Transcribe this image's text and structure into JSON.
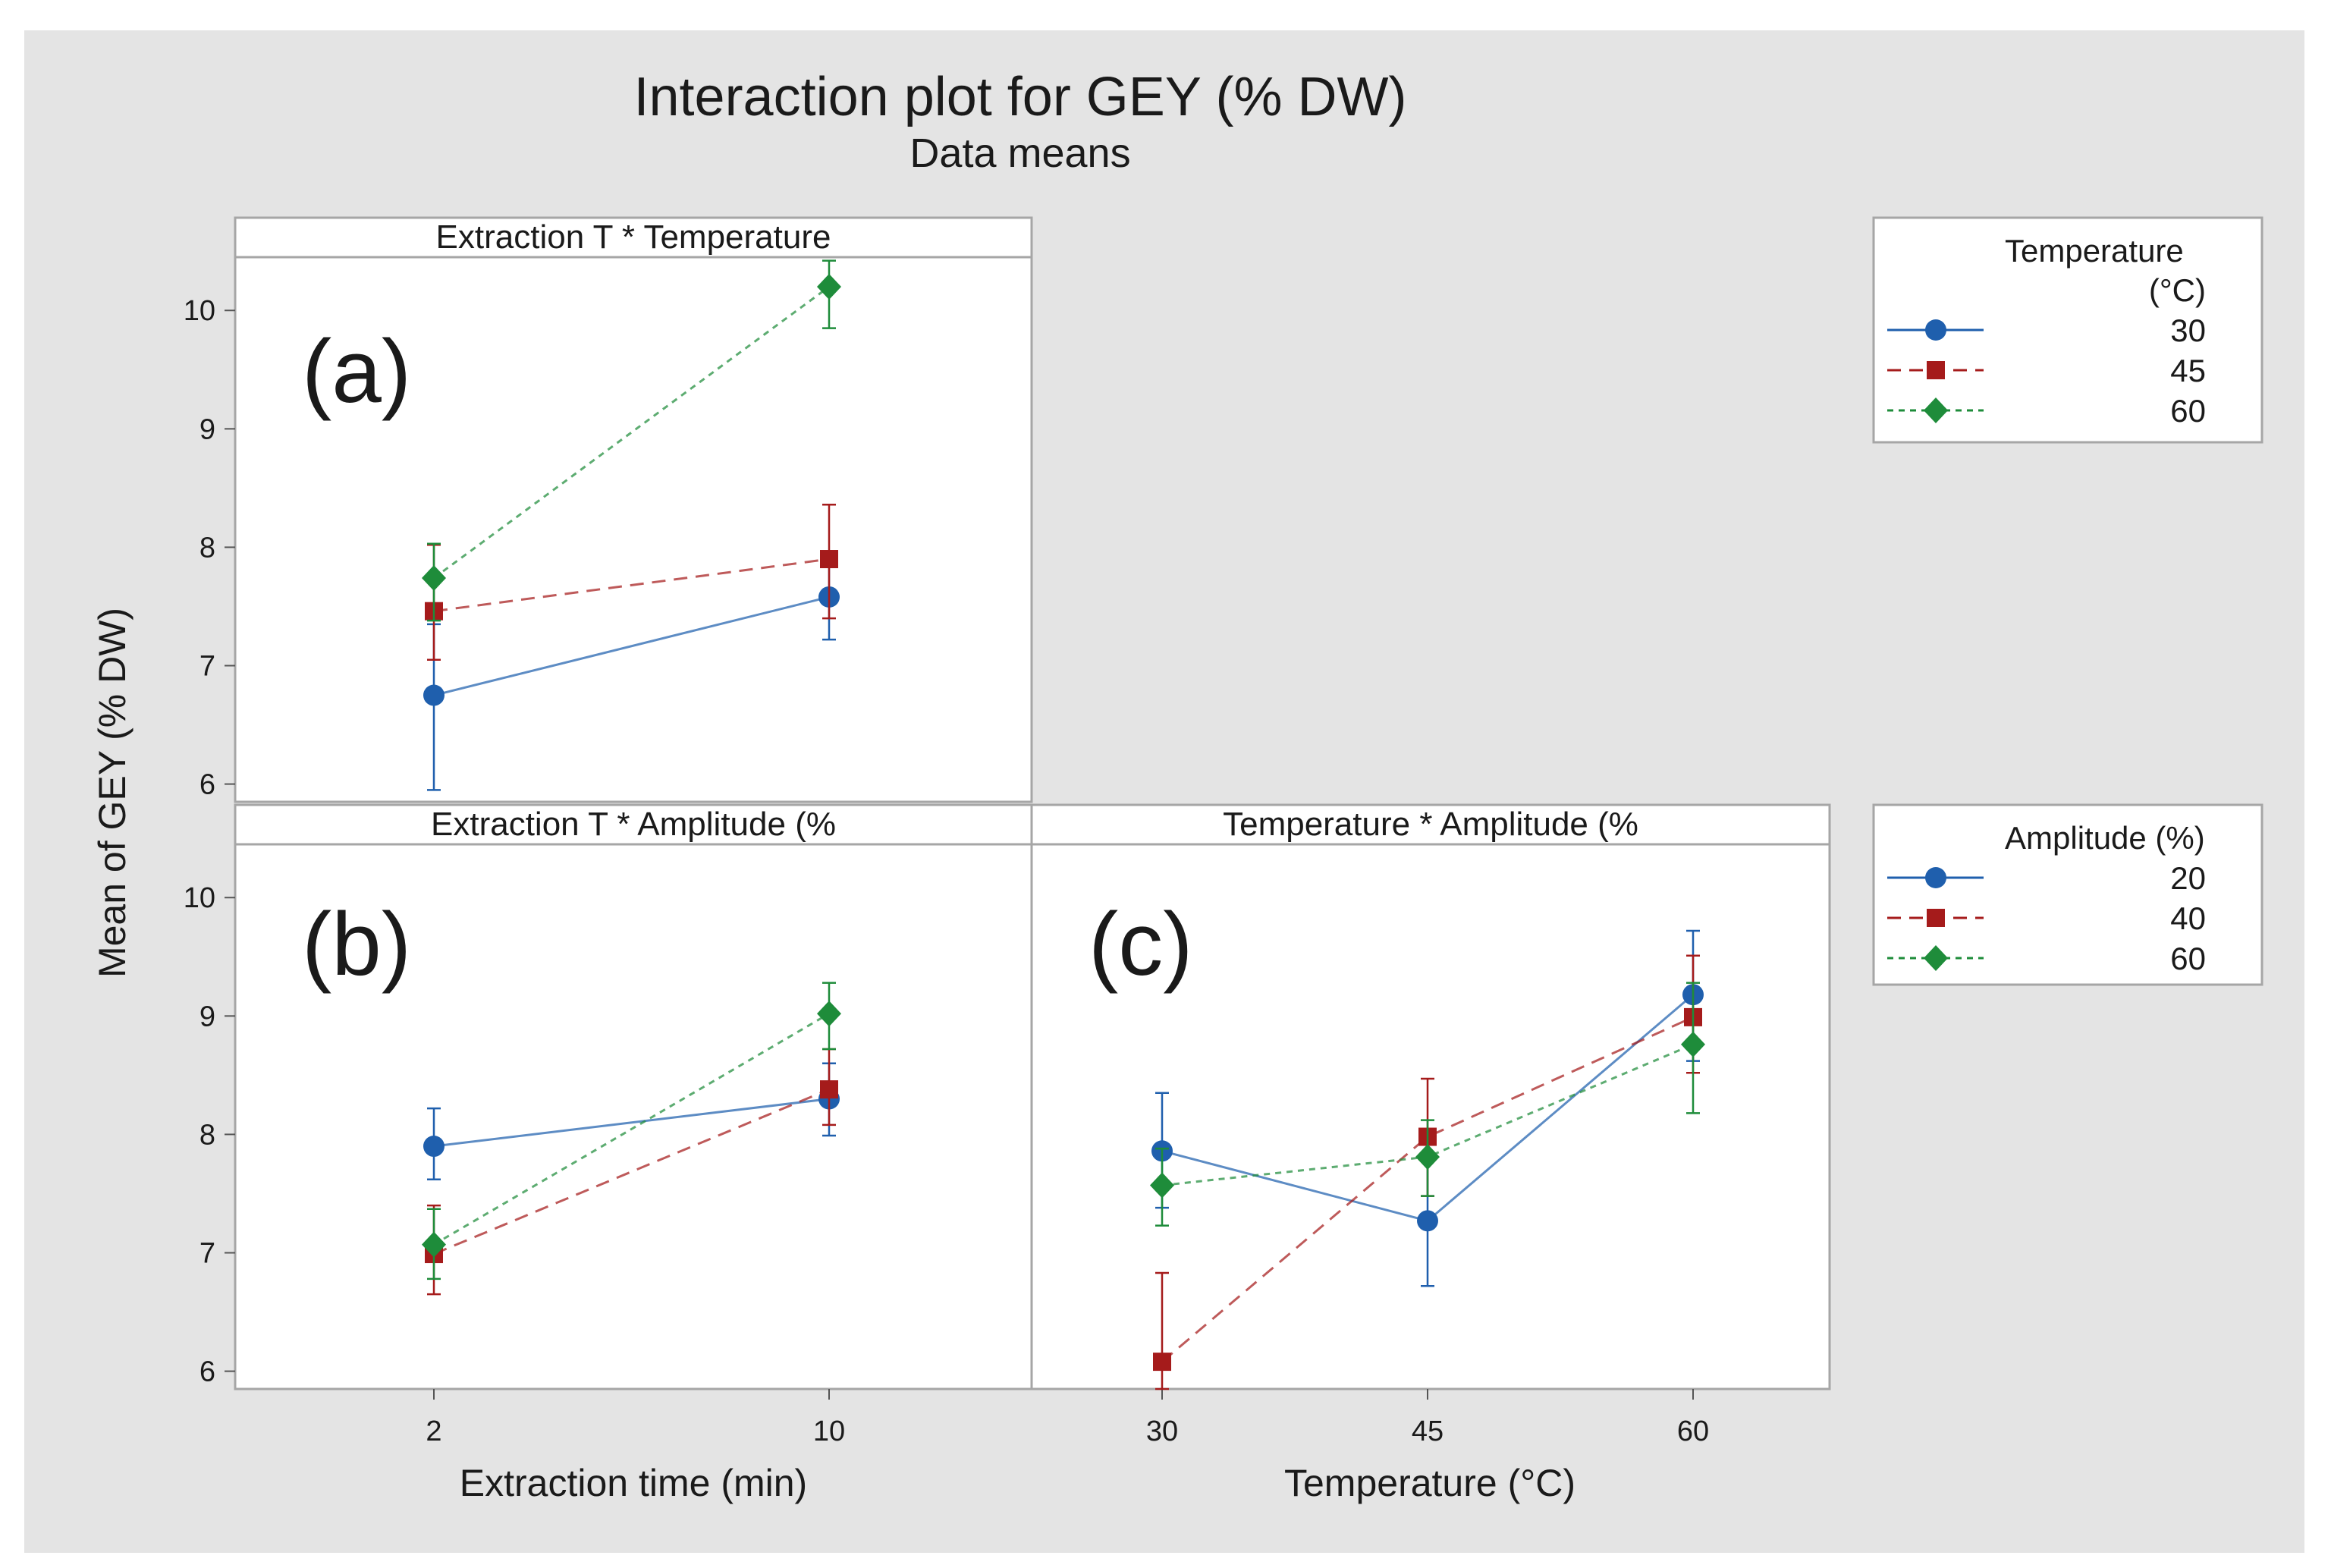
{
  "figure": {
    "title": "Interaction plot for GEY (% DW)",
    "subtitle": "Data means",
    "ylabel": "Mean of GEY (% DW)",
    "colors": {
      "outer_bg": "#ffffff",
      "figure_bg": "#e4e4e4",
      "panel_bg": "#ffffff",
      "frame": "#a6a6a6",
      "text": "#1a1a1a"
    }
  },
  "legends": [
    {
      "title_lines": [
        "Temperature",
        "(°C)"
      ],
      "items": [
        {
          "label": "30",
          "color": "#1f5fad",
          "marker": "circle",
          "dash": "solid"
        },
        {
          "label": "45",
          "color": "#a51b1b",
          "marker": "square",
          "dash": "dashed"
        },
        {
          "label": "60",
          "color": "#1e8c3a",
          "marker": "diamond",
          "dash": "dotted"
        }
      ]
    },
    {
      "title_lines": [
        "Amplitude (%)"
      ],
      "items": [
        {
          "label": "20",
          "color": "#1f5fad",
          "marker": "circle",
          "dash": "solid"
        },
        {
          "label": "40",
          "color": "#a51b1b",
          "marker": "square",
          "dash": "dashed"
        },
        {
          "label": "60",
          "color": "#1e8c3a",
          "marker": "diamond",
          "dash": "dotted"
        }
      ]
    }
  ],
  "chart_data": [
    {
      "type": "line",
      "panel": "a",
      "panel_tag": "(a)",
      "strip_title": "Extraction T * Temperature",
      "x_categories": [
        "2",
        "10"
      ],
      "xlabel": "",
      "ylim": [
        5.85,
        10.45
      ],
      "yticks": [
        6,
        7,
        8,
        9,
        10
      ],
      "series": [
        {
          "name": "30",
          "legend": 0,
          "values": [
            6.75,
            7.58
          ],
          "err_low": [
            5.95,
            7.22
          ],
          "err_high": [
            7.35,
            7.85
          ]
        },
        {
          "name": "45",
          "legend": 0,
          "values": [
            7.46,
            7.9
          ],
          "err_low": [
            7.05,
            7.4
          ],
          "err_high": [
            8.02,
            8.36
          ]
        },
        {
          "name": "60",
          "legend": 0,
          "values": [
            7.74,
            10.2
          ],
          "err_low": [
            7.38,
            9.85
          ],
          "err_high": [
            8.03,
            10.42
          ]
        }
      ]
    },
    {
      "type": "line",
      "panel": "b",
      "panel_tag": "(b)",
      "strip_title": "Extraction T * Amplitude (%",
      "x_categories": [
        "2",
        "10"
      ],
      "xlabel": "Extraction time (min)",
      "ylim": [
        5.85,
        10.45
      ],
      "yticks": [
        6,
        7,
        8,
        9,
        10
      ],
      "series": [
        {
          "name": "20",
          "legend": 1,
          "values": [
            7.9,
            8.3
          ],
          "err_low": [
            7.62,
            7.99
          ],
          "err_high": [
            8.22,
            8.6
          ]
        },
        {
          "name": "40",
          "legend": 1,
          "values": [
            6.99,
            8.38
          ],
          "err_low": [
            6.65,
            8.08
          ],
          "err_high": [
            7.4,
            8.72
          ]
        },
        {
          "name": "60",
          "legend": 1,
          "values": [
            7.07,
            9.02
          ],
          "err_low": [
            6.78,
            8.72
          ],
          "err_high": [
            7.37,
            9.28
          ]
        }
      ]
    },
    {
      "type": "line",
      "panel": "c",
      "panel_tag": "(c)",
      "strip_title": "Temperature * Amplitude (%",
      "x_categories": [
        "30",
        "45",
        "60"
      ],
      "xlabel": "Temperature (°C)",
      "ylim": [
        5.85,
        10.45
      ],
      "yticks": [
        6,
        7,
        8,
        9,
        10
      ],
      "series": [
        {
          "name": "20",
          "legend": 1,
          "values": [
            7.86,
            7.27,
            9.18
          ],
          "err_low": [
            7.38,
            6.72,
            8.62
          ],
          "err_high": [
            8.35,
            7.8,
            9.72
          ]
        },
        {
          "name": "40",
          "legend": 1,
          "values": [
            6.08,
            7.98,
            8.99
          ],
          "err_low": [
            5.85,
            7.48,
            8.52
          ],
          "err_high": [
            6.83,
            8.47,
            9.51
          ]
        },
        {
          "name": "60",
          "legend": 1,
          "values": [
            7.57,
            7.81,
            8.76
          ],
          "err_low": [
            7.23,
            7.48,
            8.18
          ],
          "err_high": [
            7.88,
            8.12,
            9.28
          ]
        }
      ]
    }
  ]
}
